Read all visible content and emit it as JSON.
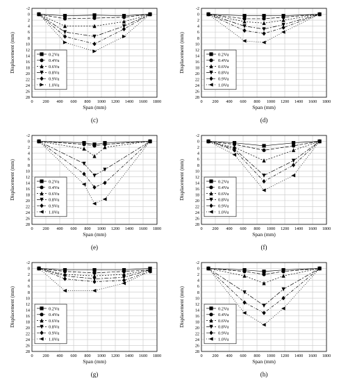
{
  "chart_data": [
    {
      "panel_label": "(c)",
      "type": "line",
      "xlabel": "Span (mm)",
      "ylabel": "Displacement (mm)",
      "xlim": [
        0,
        1800
      ],
      "ylim": [
        -2,
        28
      ],
      "y_inverted": true,
      "grid": true,
      "legend_placement": "bottom-left",
      "x_ticks": [
        0,
        200,
        400,
        600,
        800,
        1000,
        1200,
        1400,
        1600,
        1800
      ],
      "y_ticks": [
        -2,
        0,
        2,
        4,
        6,
        8,
        10,
        12,
        14,
        16,
        18,
        20,
        22,
        24,
        26,
        28
      ],
      "series": [
        {
          "name": "0.2Vu",
          "marker": "square",
          "x": [
            100,
            475,
            900,
            1325,
            1700
          ],
          "y": [
            0,
            0.5,
            0.3,
            0.5,
            0
          ]
        },
        {
          "name": "0.4Vu",
          "marker": "circle",
          "x": [
            100,
            475,
            900,
            1325,
            1700
          ],
          "y": [
            0,
            1.5,
            1.3,
            1.0,
            0
          ]
        },
        {
          "name": "0.6Vu",
          "marker": "triangle-up",
          "x": [
            100,
            475,
            900,
            1325,
            1700
          ],
          "y": [
            0,
            4.0,
            4.0,
            2.5,
            0
          ]
        },
        {
          "name": "0.8Vu",
          "marker": "triangle-down",
          "x": [
            100,
            475,
            900,
            1325,
            1700
          ],
          "y": [
            0,
            6.0,
            7.5,
            4.0,
            0
          ]
        },
        {
          "name": "0.9Vu",
          "marker": "diamond",
          "x": [
            100,
            475,
            900,
            1325,
            1700
          ],
          "y": [
            0,
            7.5,
            10.0,
            5.0,
            0
          ]
        },
        {
          "name": "1.0Vu",
          "marker": "triangle-right",
          "x": [
            100,
            475,
            900,
            1325,
            1700
          ],
          "y": [
            0,
            9.5,
            12.5,
            7.5,
            0
          ]
        }
      ]
    },
    {
      "panel_label": "(d)",
      "type": "line",
      "xlabel": "Span (mm)",
      "ylabel": "Displacement (mm)",
      "xlim": [
        0,
        1800
      ],
      "ylim": [
        -2,
        28
      ],
      "y_inverted": true,
      "grid": true,
      "legend_placement": "bottom-left",
      "x_ticks": [
        0,
        200,
        400,
        600,
        800,
        1000,
        1200,
        1400,
        1600,
        1800
      ],
      "y_ticks": [
        -2,
        0,
        2,
        4,
        6,
        8,
        10,
        12,
        14,
        16,
        18,
        20,
        22,
        24,
        26,
        28
      ],
      "series": [
        {
          "name": "0.2Vu",
          "marker": "square",
          "x": [
            100,
            620,
            900,
            1180,
            1700
          ],
          "y": [
            0,
            0.5,
            0.5,
            0.5,
            0
          ]
        },
        {
          "name": "0.4Vu",
          "marker": "circle",
          "x": [
            100,
            620,
            900,
            1180,
            1700
          ],
          "y": [
            0,
            1.5,
            1.5,
            1.0,
            0
          ]
        },
        {
          "name": "0.6Vu",
          "marker": "triangle-up",
          "x": [
            100,
            620,
            900,
            1180,
            1700
          ],
          "y": [
            0,
            2.5,
            3.0,
            2.0,
            0
          ]
        },
        {
          "name": "0.8Vu",
          "marker": "triangle-down",
          "x": [
            100,
            620,
            900,
            1180,
            1700
          ],
          "y": [
            0,
            4.0,
            5.0,
            3.5,
            0
          ]
        },
        {
          "name": "0.9Vu",
          "marker": "diamond",
          "x": [
            100,
            620,
            900,
            1180,
            1700
          ],
          "y": [
            0,
            5.5,
            6.5,
            4.5,
            0
          ]
        },
        {
          "name": "1.0Vu",
          "marker": "triangle-left",
          "x": [
            100,
            620,
            900,
            1180,
            1700
          ],
          "y": [
            0,
            9.0,
            9.5,
            6.0,
            0
          ]
        }
      ]
    },
    {
      "panel_label": "(e)",
      "type": "line",
      "xlabel": "Span (mm)",
      "ylabel": "Displacement (mm)",
      "xlim": [
        0,
        1800
      ],
      "ylim": [
        -2,
        28
      ],
      "y_inverted": true,
      "grid": true,
      "legend_placement": "bottom-left",
      "x_ticks": [
        0,
        200,
        400,
        600,
        800,
        1000,
        1200,
        1400,
        1600,
        1800
      ],
      "y_ticks": [
        -2,
        0,
        2,
        4,
        6,
        8,
        10,
        12,
        14,
        16,
        18,
        20,
        22,
        24,
        26,
        28
      ],
      "series": [
        {
          "name": "0.2Vu",
          "marker": "square",
          "x": [
            100,
            750,
            900,
            1050,
            1700
          ],
          "y": [
            0,
            0.5,
            1.0,
            0.5,
            0
          ]
        },
        {
          "name": "0.4Vu",
          "marker": "circle",
          "x": [
            100,
            750,
            900,
            1050,
            1700
          ],
          "y": [
            0,
            1.0,
            1.5,
            1.0,
            0
          ]
        },
        {
          "name": "0.6Vu",
          "marker": "triangle-up",
          "x": [
            100,
            750,
            900,
            1050,
            1700
          ],
          "y": [
            0,
            2.5,
            5.0,
            2.0,
            0
          ]
        },
        {
          "name": "0.8Vu",
          "marker": "triangle-down",
          "x": [
            100,
            750,
            900,
            1050,
            1700
          ],
          "y": [
            0,
            7.5,
            11.5,
            9.5,
            0
          ]
        },
        {
          "name": "0.9Vu",
          "marker": "diamond",
          "x": [
            100,
            750,
            900,
            1050,
            1700
          ],
          "y": [
            0,
            11.0,
            15.5,
            14.0,
            0
          ]
        },
        {
          "name": "1.0Vu",
          "marker": "triangle-left",
          "x": [
            100,
            750,
            900,
            1050,
            1700
          ],
          "y": [
            0,
            14.5,
            21.0,
            19.5,
            0
          ]
        }
      ]
    },
    {
      "panel_label": "(f)",
      "type": "line",
      "xlabel": "Span (mm)",
      "ylabel": "Displacement (mm)",
      "xlim": [
        0,
        1800
      ],
      "ylim": [
        -2,
        28
      ],
      "y_inverted": true,
      "grid": true,
      "legend_placement": "bottom-left",
      "x_ticks": [
        0,
        200,
        400,
        600,
        800,
        1000,
        1200,
        1400,
        1600,
        1800
      ],
      "y_ticks": [
        -2,
        0,
        2,
        4,
        6,
        8,
        10,
        12,
        14,
        16,
        18,
        20,
        22,
        24,
        26,
        28
      ],
      "series": [
        {
          "name": "0.2Vu",
          "marker": "square",
          "x": [
            100,
            475,
            900,
            1325,
            1700
          ],
          "y": [
            0,
            0.5,
            1.5,
            0.5,
            0
          ]
        },
        {
          "name": "0.4Vu",
          "marker": "circle",
          "x": [
            100,
            475,
            900,
            1325,
            1700
          ],
          "y": [
            0,
            1.0,
            3.0,
            1.5,
            0
          ]
        },
        {
          "name": "0.6Vu",
          "marker": "triangle-up",
          "x": [
            100,
            475,
            900,
            1325,
            1700
          ],
          "y": [
            0,
            2.0,
            6.5,
            3.0,
            0
          ]
        },
        {
          "name": "0.8Vu",
          "marker": "triangle-down",
          "x": [
            100,
            475,
            900,
            1325,
            1700
          ],
          "y": [
            0,
            2.5,
            11.5,
            6.5,
            0
          ]
        },
        {
          "name": "0.9Vu",
          "marker": "diamond",
          "x": [
            100,
            475,
            900,
            1325,
            1700
          ],
          "y": [
            0,
            3.0,
            13.5,
            8.0,
            0
          ]
        },
        {
          "name": "1.0Vu",
          "marker": "triangle-left",
          "x": [
            100,
            475,
            900,
            1325,
            1700
          ],
          "y": [
            0,
            4.5,
            16.5,
            11.5,
            0
          ]
        }
      ]
    },
    {
      "panel_label": "(g)",
      "type": "line",
      "xlabel": "Span (mm)",
      "ylabel": "Displacement (mm)",
      "xlim": [
        0,
        1800
      ],
      "ylim": [
        -2,
        28
      ],
      "y_inverted": true,
      "grid": true,
      "legend_placement": "bottom-left",
      "x_ticks": [
        0,
        200,
        400,
        600,
        800,
        1000,
        1200,
        1400,
        1600,
        1800
      ],
      "y_ticks": [
        -2,
        0,
        2,
        4,
        6,
        8,
        10,
        12,
        14,
        16,
        18,
        20,
        22,
        24,
        26,
        28
      ],
      "series": [
        {
          "name": "0.2Vu",
          "marker": "square",
          "x": [
            100,
            475,
            900,
            1325,
            1700
          ],
          "y": [
            0,
            0.5,
            0.5,
            0.5,
            0
          ]
        },
        {
          "name": "0.4Vu",
          "marker": "circle",
          "x": [
            100,
            475,
            900,
            1325,
            1700
          ],
          "y": [
            0,
            1.0,
            1.5,
            1.0,
            0.5
          ]
        },
        {
          "name": "0.6Vu",
          "marker": "triangle-up",
          "x": [
            100,
            475,
            900,
            1325,
            1700
          ],
          "y": [
            0,
            2.0,
            2.5,
            2.0,
            0.5
          ]
        },
        {
          "name": "0.8Vu",
          "marker": "triangle-down",
          "x": [
            100,
            475,
            900,
            1325,
            1700
          ],
          "y": [
            0,
            2.5,
            3.5,
            3.0,
            0.5
          ]
        },
        {
          "name": "0.9Vu",
          "marker": "diamond",
          "x": [
            100,
            475,
            900,
            1325,
            1700
          ],
          "y": [
            0,
            3.5,
            4.5,
            4.0,
            1.0
          ]
        },
        {
          "name": "1.0Vu",
          "marker": "triangle-left",
          "x": [
            100,
            475,
            900,
            1325,
            1700
          ],
          "y": [
            0,
            7.5,
            7.5,
            5.0,
            1.0
          ]
        }
      ]
    },
    {
      "panel_label": "(h)",
      "type": "line",
      "xlabel": "Span (mm)",
      "ylabel": "Displacement (mm)",
      "xlim": [
        0,
        1800
      ],
      "ylim": [
        -2,
        28
      ],
      "y_inverted": true,
      "grid": true,
      "legend_placement": "bottom-left",
      "x_ticks": [
        0,
        200,
        400,
        600,
        800,
        1000,
        1200,
        1400,
        1600,
        1800
      ],
      "y_ticks": [
        -2,
        0,
        2,
        4,
        6,
        8,
        10,
        12,
        14,
        16,
        18,
        20,
        22,
        24,
        26,
        28
      ],
      "series": [
        {
          "name": "0.2Vu",
          "marker": "square",
          "x": [
            100,
            620,
            900,
            1180,
            1700
          ],
          "y": [
            0,
            0.5,
            1.0,
            0.5,
            0
          ]
        },
        {
          "name": "0.4Vu",
          "marker": "circle",
          "x": [
            100,
            620,
            900,
            1180,
            1700
          ],
          "y": [
            0,
            1.0,
            2.0,
            1.0,
            0
          ]
        },
        {
          "name": "0.6Vu",
          "marker": "triangle-up",
          "x": [
            100,
            620,
            900,
            1180,
            1700
          ],
          "y": [
            0,
            2.5,
            5.0,
            2.5,
            0
          ]
        },
        {
          "name": "0.8Vu",
          "marker": "triangle-down",
          "x": [
            100,
            620,
            900,
            1180,
            1700
          ],
          "y": [
            0,
            8.0,
            12.5,
            7.0,
            0
          ]
        },
        {
          "name": "0.9Vu",
          "marker": "diamond",
          "x": [
            100,
            620,
            900,
            1180,
            1700
          ],
          "y": [
            0,
            11.5,
            15.0,
            10.0,
            0
          ]
        },
        {
          "name": "1.0Vu",
          "marker": "triangle-left",
          "x": [
            100,
            620,
            900,
            1180,
            1700
          ],
          "y": [
            0,
            15.0,
            19.0,
            13.5,
            0
          ]
        }
      ]
    }
  ],
  "style": {
    "line_color": "#000000",
    "grid_color": "#c8c8c8",
    "background": "#ffffff",
    "series_dash": [
      "",
      "5,2",
      "2,2",
      "6,2,2,2",
      "4,2,1,2",
      "1,2"
    ]
  }
}
